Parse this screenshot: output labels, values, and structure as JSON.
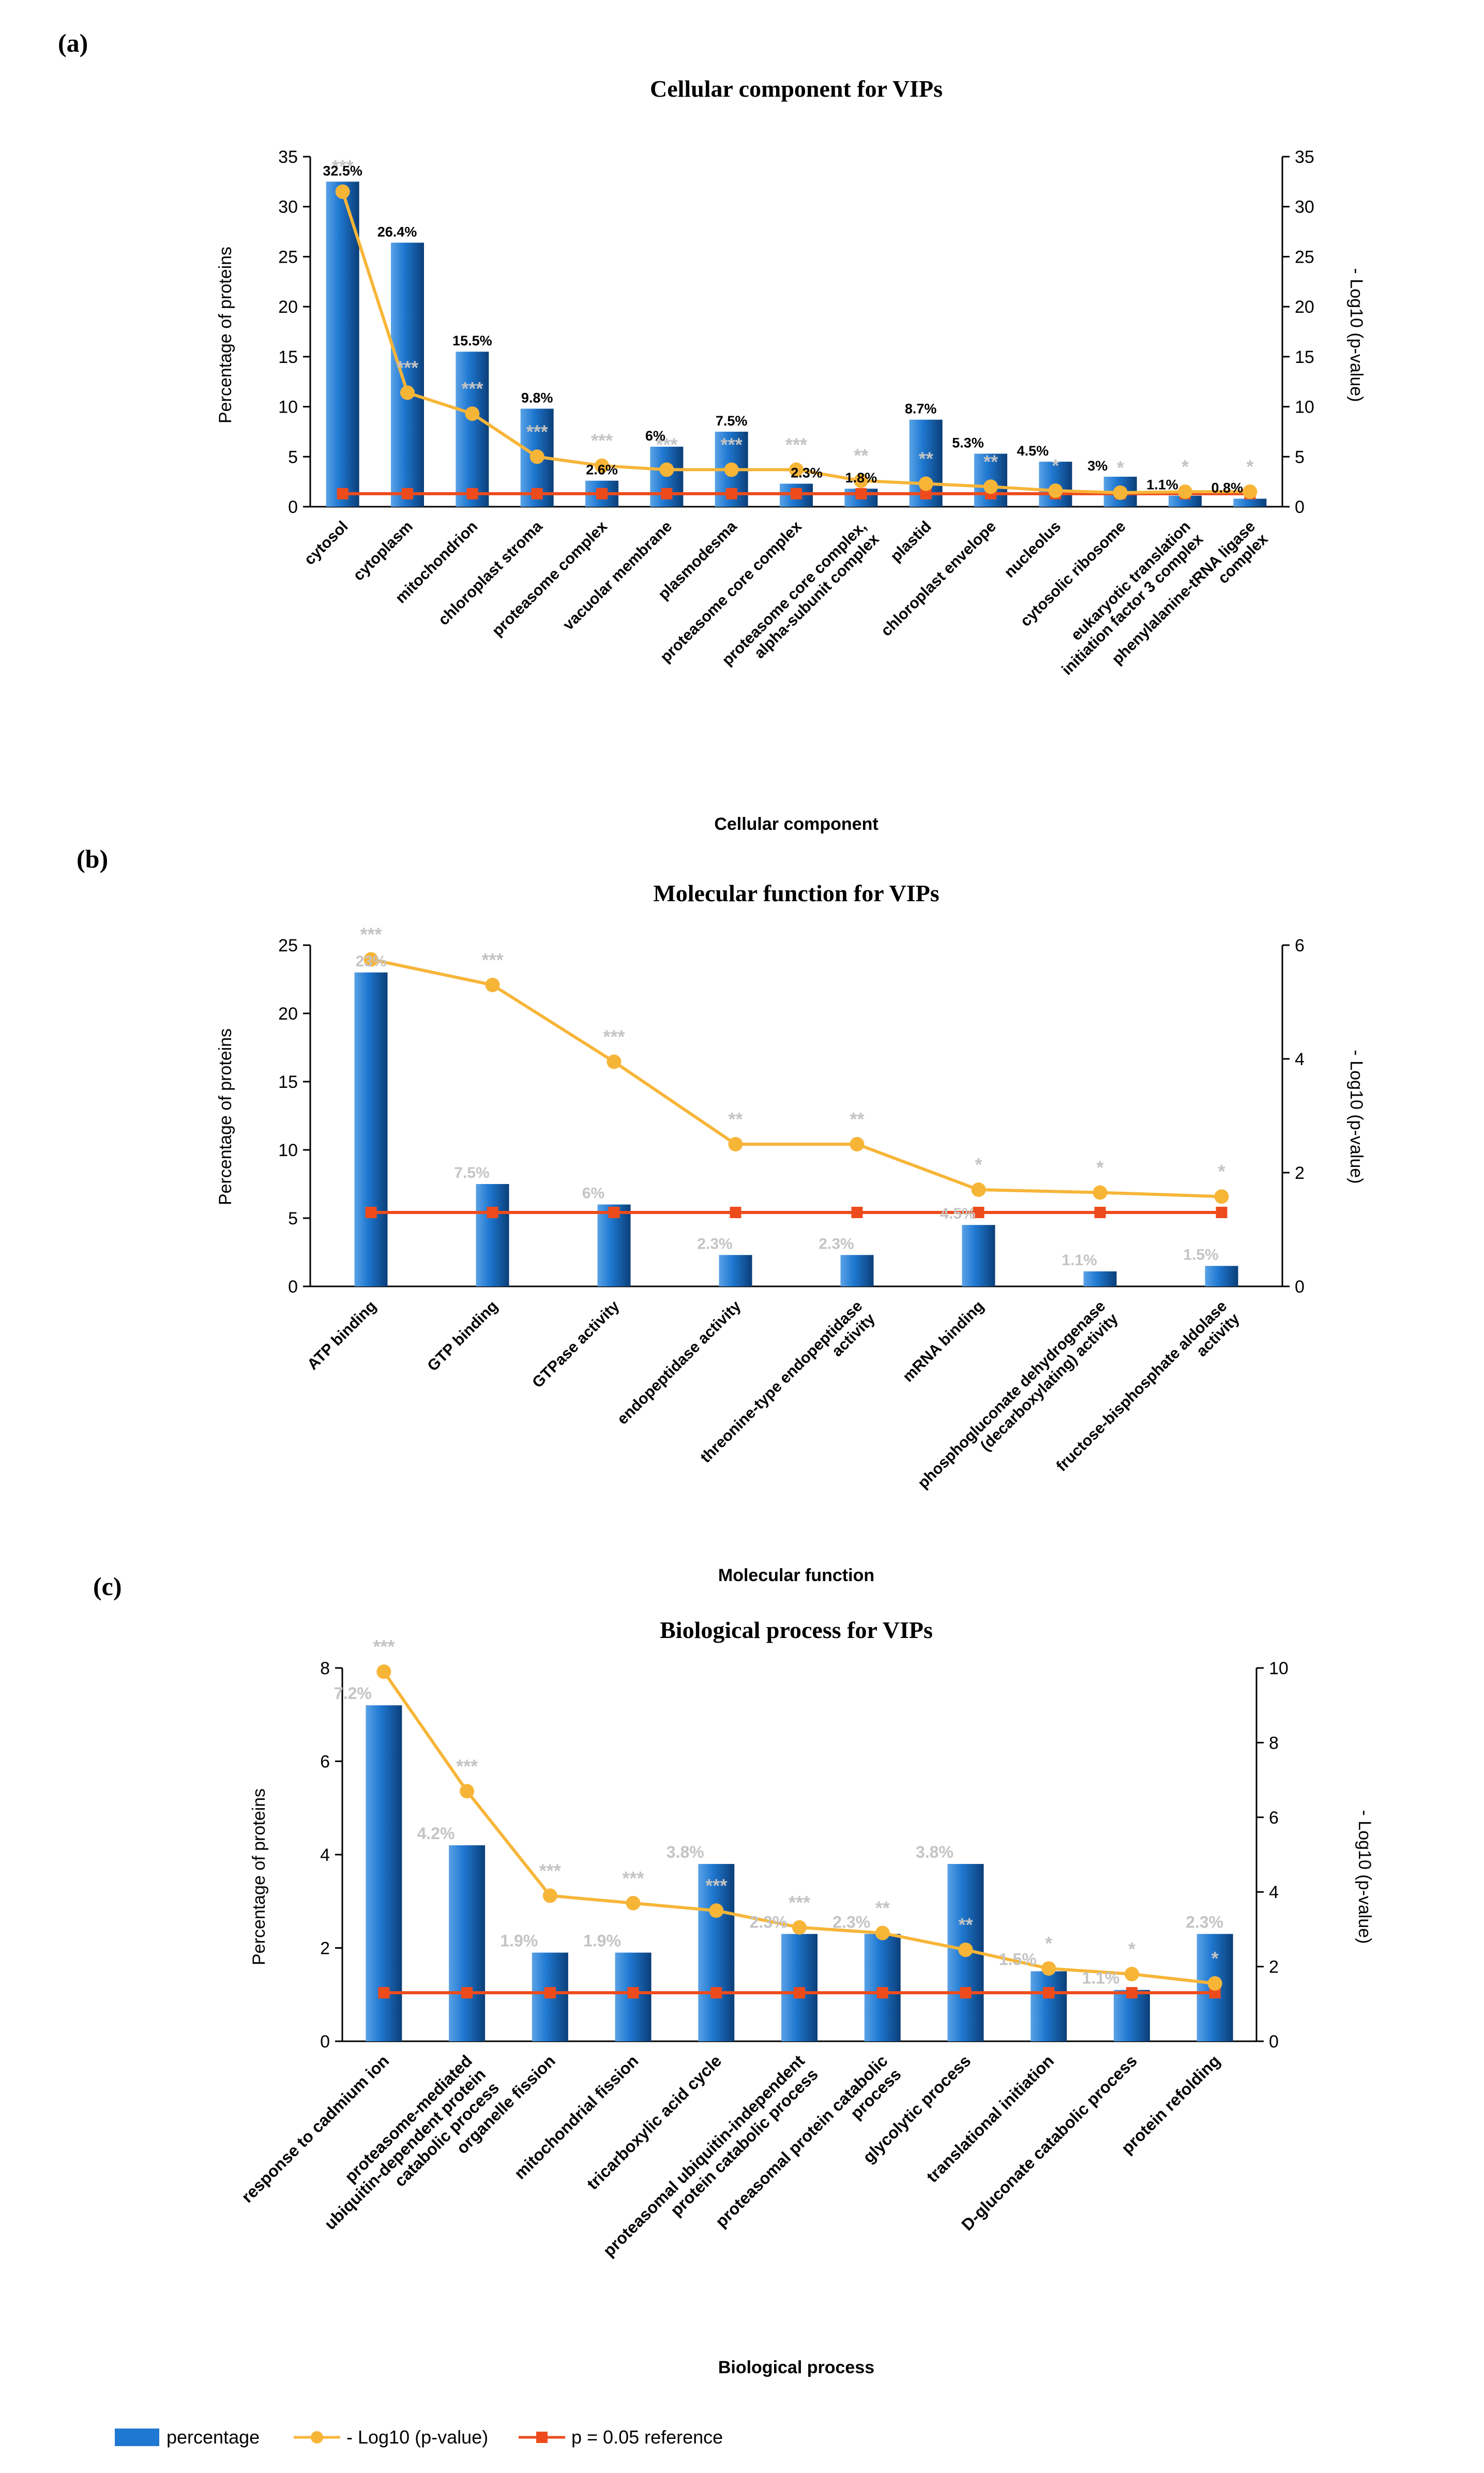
{
  "palette": {
    "bar_light": "#5aa2e6",
    "bar_mid": "#1f78d1",
    "bar_dark": "#0b3e78",
    "line": "#f7b538",
    "ref": "#ee4b1c",
    "sig_gray": "#c4c4c4",
    "label_black": "#000000"
  },
  "legend": {
    "percentage": "percentage",
    "log10": "- Log10 (p-value)",
    "reference": "p = 0.05 reference"
  },
  "chart_data": [
    {
      "panel": "(a)",
      "type": "bar",
      "title": "Cellular component for VIPs",
      "xlabel": "Cellular component",
      "ylabel": "Percentage of proteins",
      "y2label": "- Log10 (p-value)",
      "ylim": [
        0,
        35
      ],
      "yticks": [
        0,
        5,
        10,
        15,
        20,
        25,
        30,
        35
      ],
      "y2lim": [
        0,
        35
      ],
      "y2ticks": [
        0,
        5,
        10,
        15,
        20,
        25,
        30,
        35
      ],
      "label_style": "black",
      "categories": [
        "cytosol",
        "cytoplasm",
        "mitochondrion",
        "chloroplast stroma",
        "proteasome complex",
        "vacuolar membrane",
        "plasmodesma",
        "proteasome core complex",
        "proteasome core complex, alpha-subunit complex",
        "plastid",
        "chloroplast envelope",
        "nucleolus",
        "cytosolic ribosome",
        "eukaryotic translation initiation factor 3 complex",
        "phenylalanine-tRNA ligase complex"
      ],
      "values": [
        32.5,
        26.4,
        15.5,
        9.8,
        2.6,
        6,
        7.5,
        2.3,
        1.8,
        8.7,
        5.3,
        4.5,
        3,
        1.1,
        0.8
      ],
      "labels": [
        "32.5%",
        "26.4%",
        "15.5%",
        "9.8%",
        "2.6%",
        "6%",
        "7.5%",
        "2.3%",
        "1.8%",
        "8.7%",
        "5.3%",
        "4.5%",
        "3%",
        "1.1%",
        "0.8%"
      ],
      "neg_log10_p": [
        31.5,
        11.4,
        9.3,
        5.0,
        4.1,
        3.7,
        3.7,
        3.7,
        2.6,
        2.3,
        2.0,
        1.6,
        1.4,
        1.5,
        1.5
      ],
      "significance": [
        "***",
        "***",
        "***",
        "***",
        "***",
        "***",
        "***",
        "***",
        "**",
        "**",
        "**",
        "*",
        "*",
        "*",
        "*"
      ],
      "reference": 1.3
    },
    {
      "panel": "(b)",
      "type": "bar",
      "title": "Molecular function for VIPs",
      "xlabel": "Molecular function",
      "ylabel": "Percentage of proteins",
      "y2label": "- Log10 (p-value)",
      "ylim": [
        0,
        25
      ],
      "yticks": [
        0,
        5,
        10,
        15,
        20,
        25
      ],
      "y2lim": [
        0,
        6
      ],
      "y2ticks": [
        0,
        2,
        4,
        6
      ],
      "label_style": "gray",
      "categories": [
        "ATP binding",
        "GTP binding",
        "GTPase activity",
        "endopeptidase activity",
        "threonine-type endopeptidase activity",
        "mRNA binding",
        "phosphogluconate dehydrogenase (decarboxylating) activity",
        "fructose-bisphosphate aldolase activity"
      ],
      "values": [
        23,
        7.5,
        6,
        2.3,
        2.3,
        4.5,
        1.1,
        1.5
      ],
      "labels": [
        "23%",
        "7.5%",
        "6%",
        "2.3%",
        "2.3%",
        "4.5%",
        "1.1%",
        "1.5%"
      ],
      "neg_log10_p": [
        5.75,
        5.3,
        3.95,
        2.5,
        2.5,
        1.7,
        1.65,
        1.58
      ],
      "significance": [
        "***",
        "***",
        "***",
        "**",
        "**",
        "*",
        "*",
        "*"
      ],
      "reference": 1.3
    },
    {
      "panel": "(c)",
      "type": "bar",
      "title": "Biological process for VIPs",
      "xlabel": "Biological process",
      "ylabel": "Percentage of proteins",
      "y2label": "- Log10 (p-value)",
      "ylim": [
        0,
        8
      ],
      "yticks": [
        0,
        2,
        4,
        6,
        8
      ],
      "y2lim": [
        0,
        10
      ],
      "y2ticks": [
        0,
        2,
        4,
        6,
        8,
        10
      ],
      "label_style": "gray",
      "categories": [
        "response to cadmium ion",
        "proteasome-mediated ubiquitin-dependent protein catabolic process",
        "organelle fission",
        "mitochondrial fission",
        "tricarboxylic acid cycle",
        "proteasomal ubiquitin-independent protein catabolic process",
        "proteasomal protein catabolic process",
        "glycolytic process",
        "translational initiation",
        "D-gluconate catabolic process",
        "protein refolding"
      ],
      "values": [
        7.2,
        4.2,
        1.9,
        1.9,
        3.8,
        2.3,
        2.3,
        3.8,
        1.5,
        1.1,
        2.3
      ],
      "labels": [
        "7.2%",
        "4.2%",
        "1.9%",
        "1.9%",
        "3.8%",
        "2.3%",
        "2.3%",
        "3.8%",
        "1.5%",
        "1.1%",
        "2.3%"
      ],
      "neg_log10_p": [
        9.9,
        6.7,
        3.9,
        3.7,
        3.5,
        3.05,
        2.9,
        2.45,
        1.95,
        1.8,
        1.55
      ],
      "significance": [
        "***",
        "***",
        "***",
        "***",
        "***",
        "***",
        "**",
        "**",
        "*",
        "*",
        "*"
      ],
      "reference": 1.3
    }
  ]
}
